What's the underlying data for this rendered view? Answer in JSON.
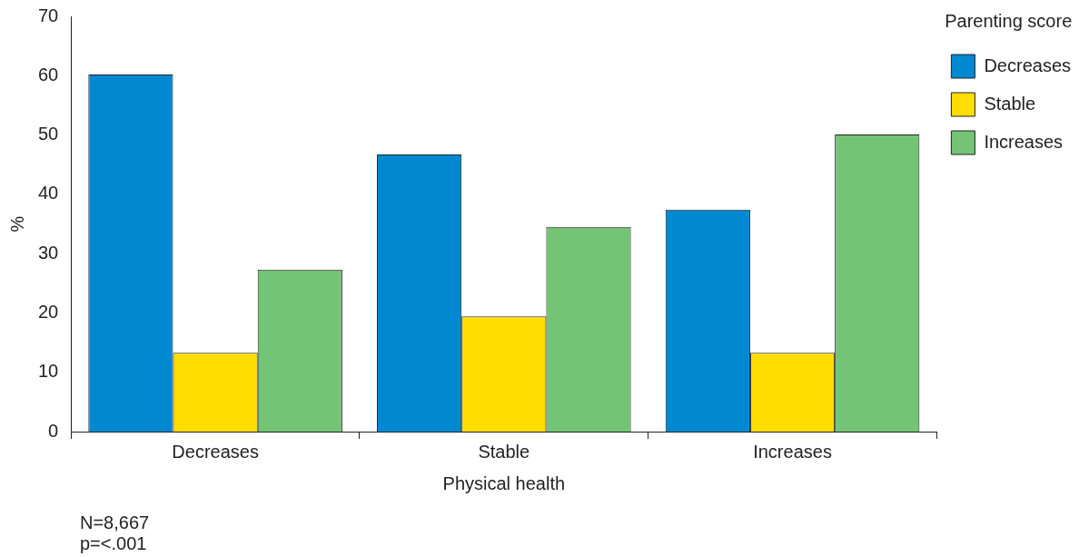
{
  "chart_data": {
    "type": "bar",
    "xlabel": "Physical health",
    "ylabel": "%",
    "legend_title": "Parenting score",
    "legend": "top right",
    "categories": [
      "Decreases",
      "Stable",
      "Increases"
    ],
    "series": [
      {
        "name": "Decreases",
        "color": "#0088d1",
        "values": [
          60.2,
          46.7,
          37.4
        ]
      },
      {
        "name": "Stable",
        "color": "#ffdd00",
        "values": [
          13.3,
          19.4,
          13.3
        ]
      },
      {
        "name": "Increases",
        "color": "#74c476",
        "values": [
          27.3,
          34.5,
          50.1
        ]
      }
    ],
    "ylim": [
      0,
      70
    ],
    "yticks": [
      0,
      10,
      20,
      30,
      40,
      50,
      60,
      70
    ],
    "annotations": [
      "N=8,667",
      "p=<.001"
    ]
  }
}
